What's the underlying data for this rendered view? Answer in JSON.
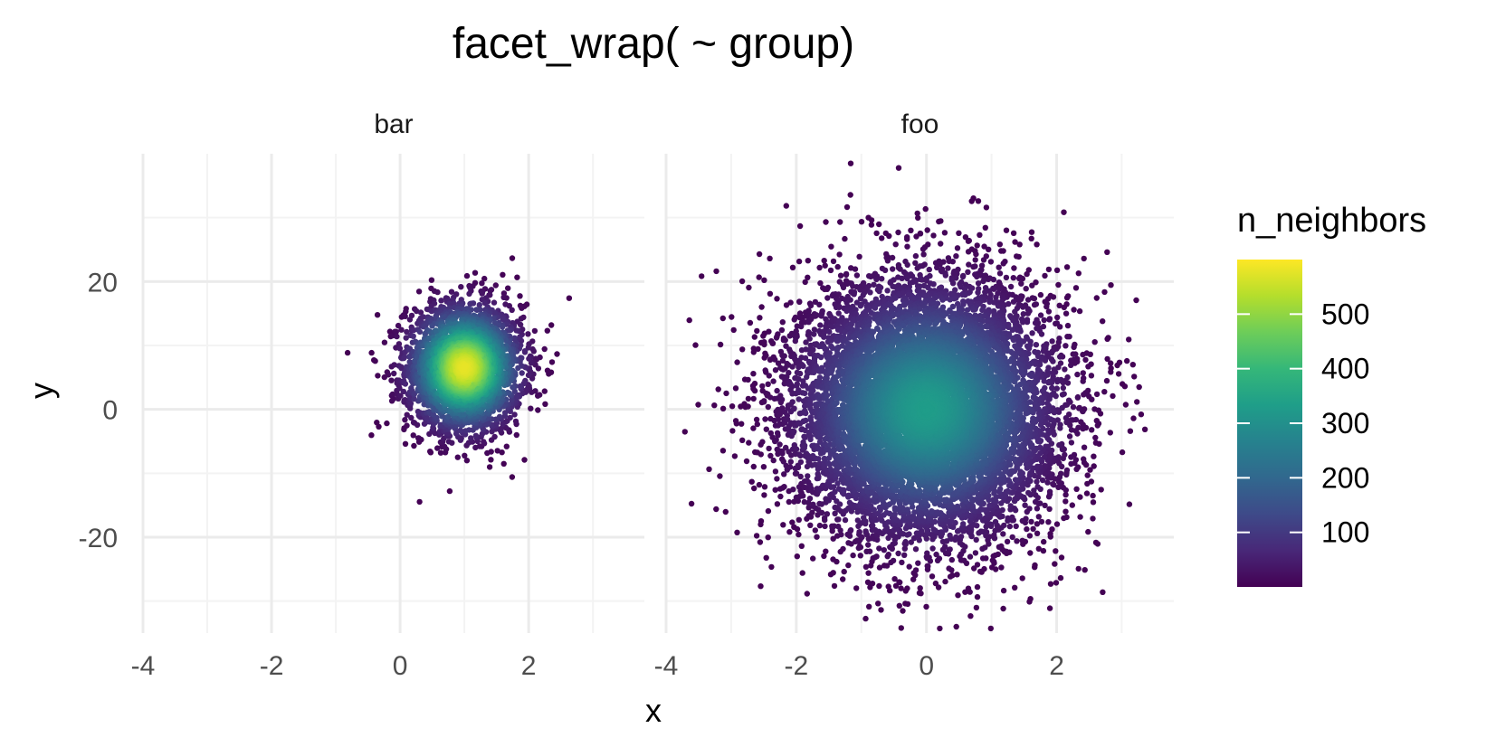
{
  "chart_data": {
    "type": "scatter",
    "title": "facet_wrap( ~ group)",
    "xlabel": "x",
    "ylabel": "y",
    "grid": true,
    "legend_position": "right",
    "facets": [
      {
        "label": "bar",
        "xlim": [
          -4.0,
          3.8
        ],
        "ylim": [
          -35,
          40
        ],
        "x_ticks": [
          -4,
          -2,
          0,
          2
        ],
        "y_ticks": [
          -20,
          0,
          20
        ],
        "center": [
          1.0,
          6.5
        ],
        "sd": [
          0.45,
          5.0
        ],
        "n_points": 3000
      },
      {
        "label": "foo",
        "xlim": [
          -4.0,
          3.8
        ],
        "ylim": [
          -35,
          40
        ],
        "x_ticks": [
          -4,
          -2,
          0,
          2
        ],
        "y_ticks": [
          -20,
          0,
          20
        ],
        "center": [
          0.0,
          0.0
        ],
        "sd": [
          1.0,
          10.0
        ],
        "n_points": 10000
      }
    ],
    "legend": {
      "title": "n_neighbors",
      "ticks": [
        100,
        200,
        300,
        400,
        500
      ],
      "tick_labels": [
        "100",
        "200",
        "300",
        "400",
        "500"
      ],
      "range": [
        0,
        600
      ],
      "palette": [
        "#440154",
        "#482878",
        "#3E4A89",
        "#31688E",
        "#26828E",
        "#1F9E89",
        "#35B779",
        "#6DCD59",
        "#B4DE2C",
        "#FDE725"
      ]
    },
    "colors": {
      "grid_major": "#EBEBEB",
      "grid_minor": "#F3F3F3",
      "axis_text": "#4D4D4D",
      "text": "#000000"
    }
  }
}
